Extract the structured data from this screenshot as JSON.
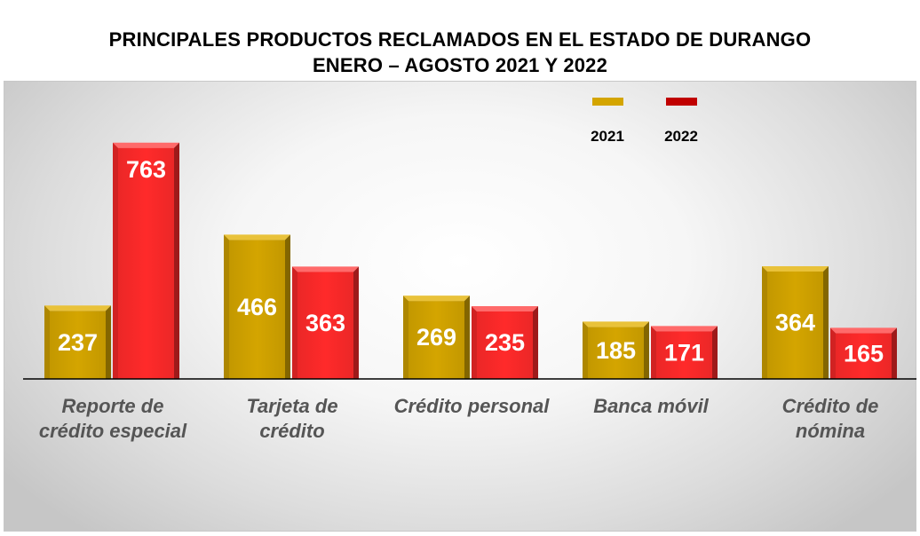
{
  "chart_data": {
    "type": "bar",
    "title": "PRINCIPALES PRODUCTOS RECLAMADOS EN EL ESTADO DE DURANGO",
    "subtitle": "ENERO – AGOSTO 2021 Y 2022",
    "categories": [
      [
        "Reporte de",
        "crédito especial"
      ],
      [
        "Tarjeta de",
        "crédito"
      ],
      [
        "Crédito personal"
      ],
      [
        "Banca móvil"
      ],
      [
        "Crédito de",
        "nómina"
      ]
    ],
    "series": [
      {
        "name": "2021",
        "values": [
          237,
          466,
          269,
          185,
          364
        ],
        "color": "#D4A500"
      },
      {
        "name": "2022",
        "values": [
          763,
          363,
          235,
          171,
          165
        ],
        "color": "#FF2A2A"
      }
    ],
    "legend_position": "top-right",
    "xlabel": "",
    "ylabel": "",
    "ylim": [
      0,
      900
    ],
    "grid": false
  }
}
